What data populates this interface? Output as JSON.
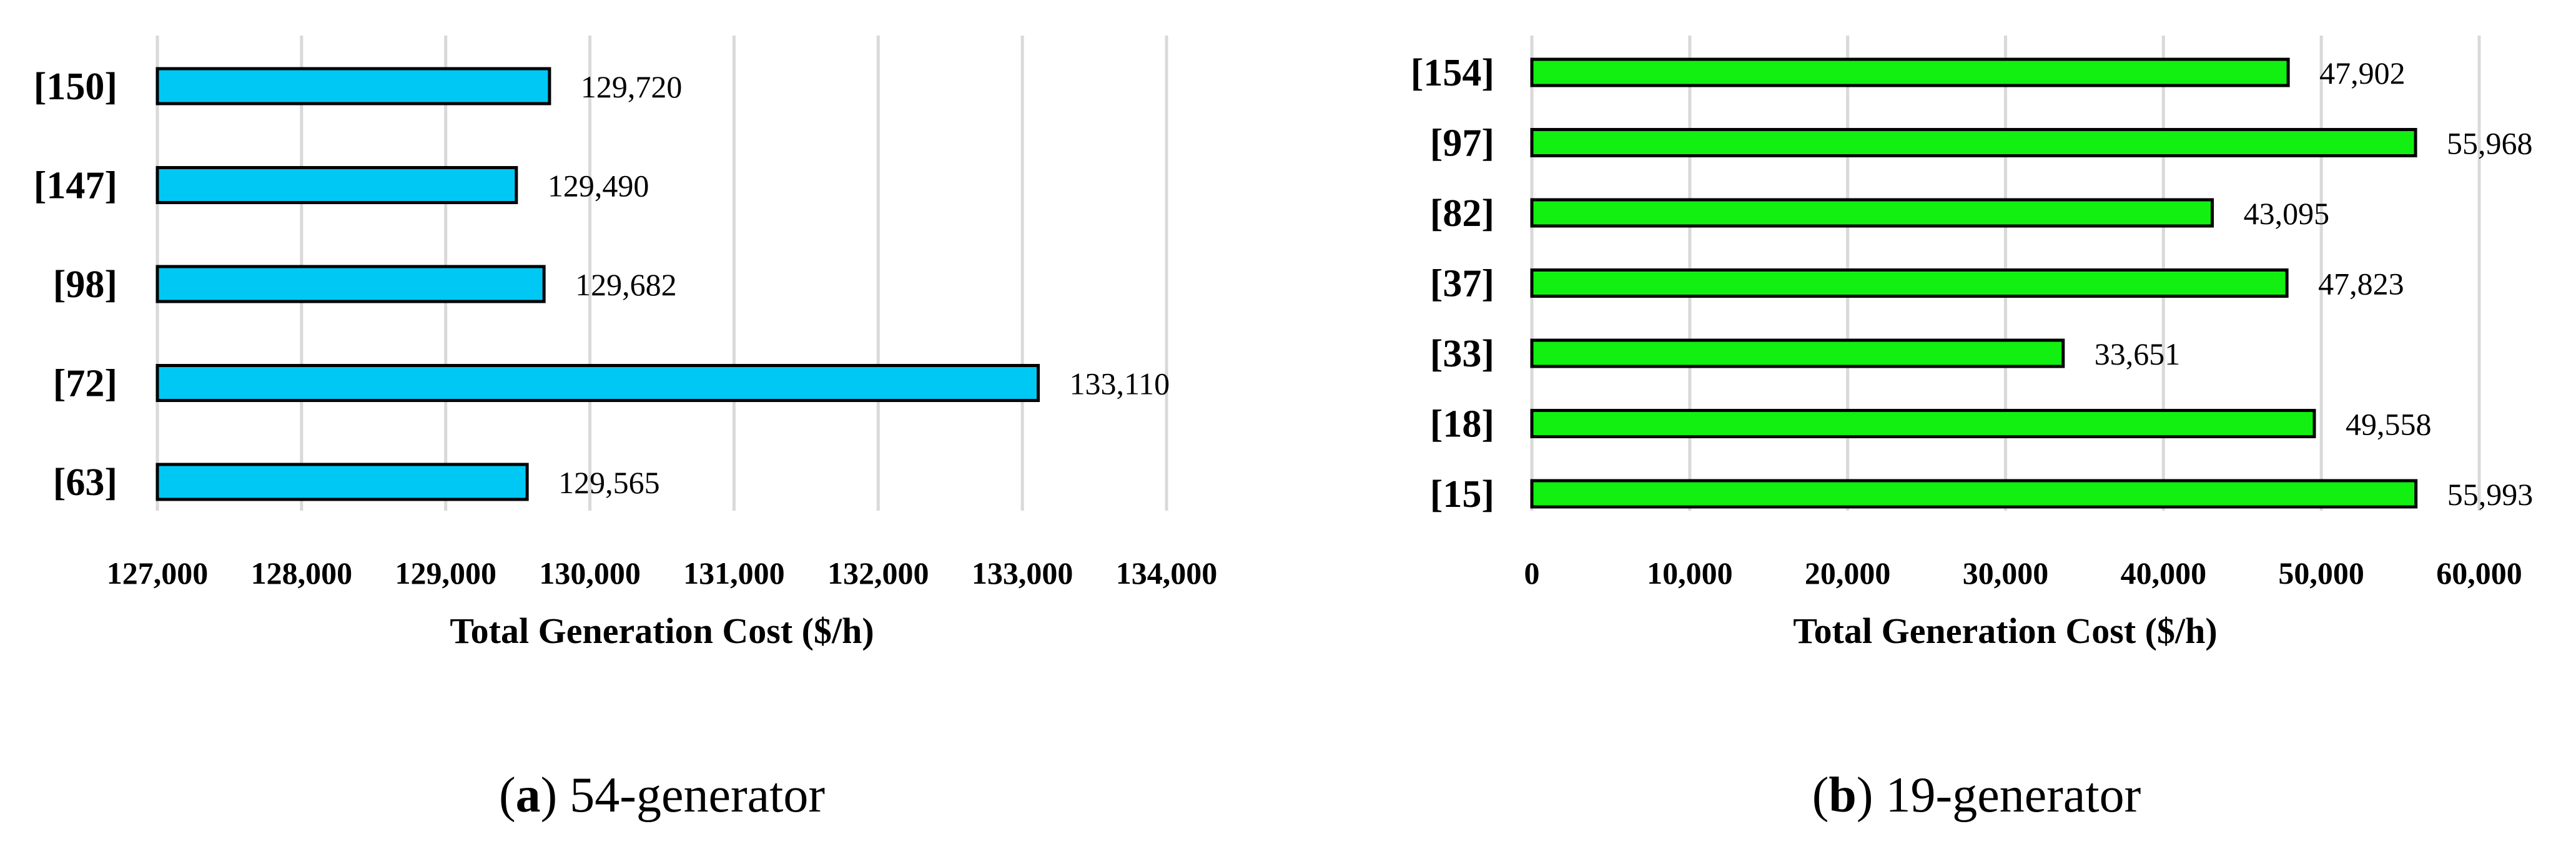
{
  "chart_data": [
    {
      "type": "bar",
      "orientation": "horizontal",
      "bar_color": "#00C8F5",
      "categories": [
        "[150]",
        "[147]",
        "[98]",
        "[72]",
        "[63]"
      ],
      "values": [
        129720,
        129490,
        129682,
        133110,
        129565
      ],
      "value_labels": [
        "129,720",
        "129,490",
        "129,682",
        "133,110",
        "129,565"
      ],
      "xlabel": "Total Generation Cost ($/h)",
      "xlim": [
        127000,
        134000
      ],
      "ticks": [
        127000,
        128000,
        129000,
        130000,
        131000,
        132000,
        133000,
        134000
      ],
      "tick_labels": [
        "127,000",
        "128,000",
        "129,000",
        "130,000",
        "131,000",
        "132,000",
        "133,000",
        "134,000"
      ],
      "grid": true,
      "caption_letter": "a",
      "caption_text": "54-generator"
    },
    {
      "type": "bar",
      "orientation": "horizontal",
      "bar_color": "#11F011",
      "categories": [
        "[154]",
        "[97]",
        "[82]",
        "[37]",
        "[33]",
        "[18]",
        "[15]"
      ],
      "values": [
        47902,
        55968,
        43095,
        47823,
        33651,
        49558,
        55993
      ],
      "value_labels": [
        "47,902",
        "55,968",
        "43,095",
        "47,823",
        "33,651",
        "49,558",
        "55,993"
      ],
      "xlabel": "Total Generation Cost ($/h)",
      "xlim": [
        0,
        60000
      ],
      "ticks": [
        0,
        10000,
        20000,
        30000,
        40000,
        50000,
        60000
      ],
      "tick_labels": [
        "0",
        "10,000",
        "20,000",
        "30,000",
        "40,000",
        "50,000",
        "60,000"
      ],
      "grid": true,
      "caption_letter": "b",
      "caption_text": "19-generator"
    }
  ]
}
